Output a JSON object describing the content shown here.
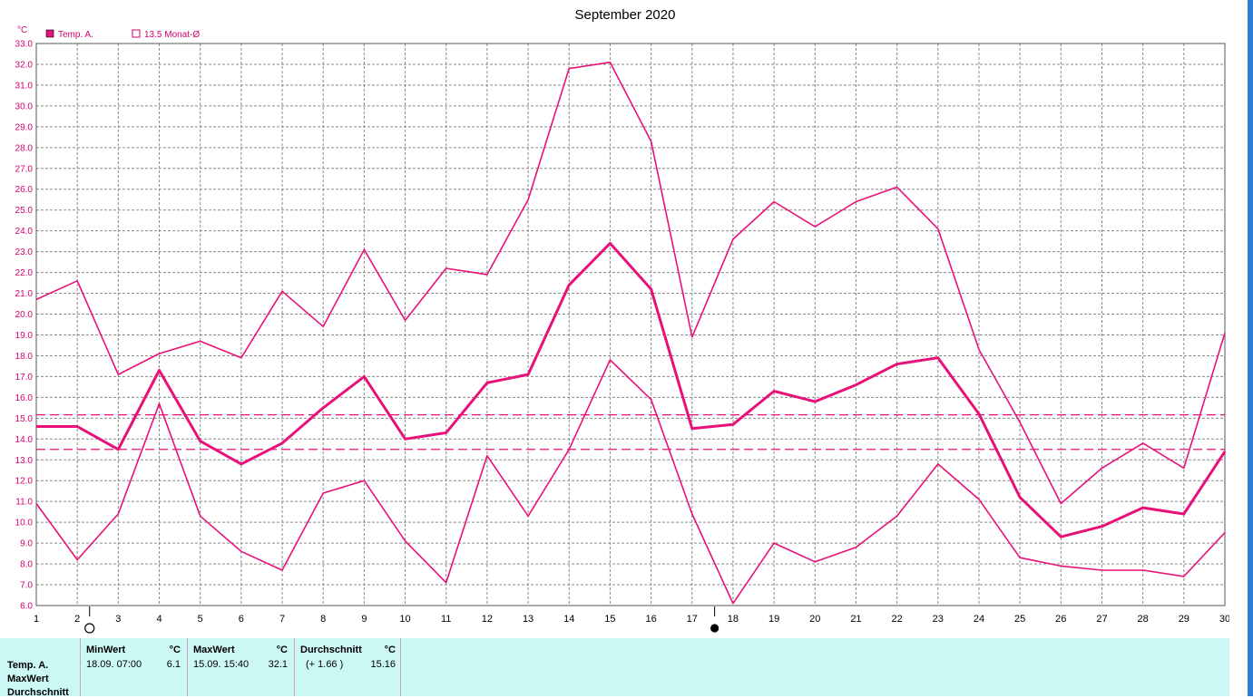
{
  "chart_data": {
    "type": "line",
    "title": "September 2020",
    "ylabel": "°C",
    "ylim": [
      6.0,
      33.0
    ],
    "y_step": 1.0,
    "x": [
      1,
      2,
      3,
      4,
      5,
      6,
      7,
      8,
      9,
      10,
      11,
      12,
      13,
      14,
      15,
      16,
      17,
      18,
      19,
      20,
      21,
      22,
      23,
      24,
      25,
      26,
      27,
      28,
      29,
      30
    ],
    "legend": [
      {
        "label": "Temp. A.",
        "marker": "filled"
      },
      {
        "label": "13.5 Monat-Ø",
        "marker": "open"
      }
    ],
    "series": [
      {
        "role": "max",
        "width": 1.6,
        "values": [
          20.7,
          21.6,
          17.1,
          18.1,
          18.7,
          17.9,
          21.1,
          19.4,
          23.1,
          19.7,
          22.2,
          21.9,
          25.5,
          31.8,
          32.1,
          28.3,
          18.9,
          23.6,
          25.4,
          24.2,
          25.4,
          26.1,
          24.1,
          18.3,
          14.8,
          10.9,
          12.6,
          13.8,
          12.6,
          19.1
        ]
      },
      {
        "role": "avg",
        "width": 3,
        "values": [
          14.6,
          14.6,
          13.5,
          17.3,
          13.9,
          12.8,
          13.8,
          15.5,
          17.0,
          14.0,
          14.3,
          16.7,
          17.1,
          21.4,
          23.4,
          21.2,
          14.5,
          14.7,
          16.3,
          15.8,
          16.6,
          17.6,
          17.9,
          15.2,
          11.2,
          9.3,
          9.8,
          10.7,
          10.4,
          13.4
        ]
      },
      {
        "role": "min",
        "width": 1.6,
        "values": [
          10.9,
          8.2,
          10.4,
          15.7,
          10.3,
          8.6,
          7.7,
          11.4,
          12.0,
          9.1,
          7.1,
          13.2,
          10.3,
          13.5,
          17.8,
          15.9,
          10.4,
          6.1,
          9.0,
          8.1,
          8.8,
          10.3,
          12.8,
          11.1,
          8.3,
          7.9,
          7.7,
          7.7,
          7.4,
          9.5
        ]
      }
    ],
    "reference_lines": [
      15.16,
      13.5
    ],
    "moon_phases": [
      {
        "day": 2.3,
        "phase": "full"
      },
      {
        "day": 17.55,
        "phase": "new"
      }
    ],
    "grid": true
  },
  "colors": {
    "series": "#e8117a",
    "tick_label": "#d4006f",
    "grid": "#8a8a8a",
    "panel_bg": "#ccf8f5"
  },
  "stats": {
    "row_labels": [
      "Temp. A.",
      "MaxWert",
      "Durchschnitt"
    ],
    "min": {
      "header": "MinWert",
      "unit": "°C",
      "when": "18.09.  07:00",
      "value": "6.1"
    },
    "max": {
      "header": "MaxWert",
      "unit": "°C",
      "when": "15.09.  15:40",
      "value": "32.1"
    },
    "avg": {
      "header": "Durchschnitt",
      "unit": "°C",
      "when": "(+ 1.66 )",
      "value": "15.16"
    }
  }
}
